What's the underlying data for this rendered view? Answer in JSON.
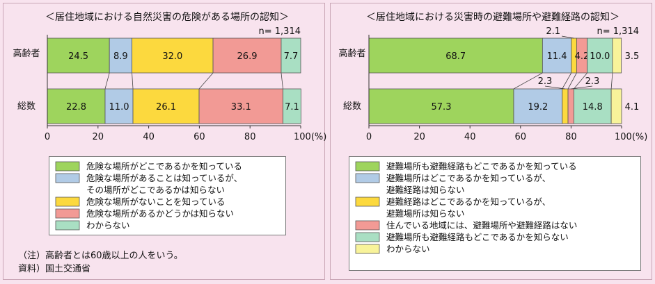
{
  "notes": {
    "note": "（注）高齢者とは60歳以上の人をいう。",
    "source": "資料）国土交通省"
  },
  "chart_data": [
    {
      "type": "bar",
      "orientation": "horizontal",
      "stacked": true,
      "title": "＜居住地域における自然災害の危険がある場所の認知＞",
      "sample_size": "n= 1,314",
      "categories": [
        "高齢者",
        "総数"
      ],
      "xlim": [
        0,
        100
      ],
      "x_ticks": [
        "0",
        "20",
        "40",
        "60",
        "80",
        "100(%)"
      ],
      "series": [
        {
          "name": "危険な場所がどこであるかを知っている",
          "color": "#9ed45d",
          "values": [
            24.5,
            22.8
          ]
        },
        {
          "name": "危険な場所があることは知っているが、その場所がどこであるかは知らない",
          "color": "#b1cbe6",
          "values": [
            8.9,
            11.0
          ]
        },
        {
          "name": "危険な場所がないことを知っている",
          "color": "#fcd93e",
          "values": [
            32.0,
            26.1
          ]
        },
        {
          "name": "危険な場所があるかどうかは知らない",
          "color": "#f29a95",
          "values": [
            26.9,
            33.1
          ]
        },
        {
          "name": "わからない",
          "color": "#a9dfc3",
          "values": [
            7.7,
            7.1
          ]
        }
      ],
      "value_labels": [
        [
          "24.5",
          "8.9",
          "32.0",
          "26.9",
          "7.7"
        ],
        [
          "22.8",
          "11.0",
          "26.1",
          "33.1",
          "7.1"
        ]
      ],
      "legend_lines": [
        [
          "危険な場所がどこであるかを知っている"
        ],
        [
          "危険な場所があることは知っているが、",
          "その場所がどこであるかは知らない"
        ],
        [
          "危険な場所がないことを知っている"
        ],
        [
          "危険な場所があるかどうかは知らない"
        ],
        [
          "わからない"
        ]
      ]
    },
    {
      "type": "bar",
      "orientation": "horizontal",
      "stacked": true,
      "title": "＜居住地域における災害時の避難場所や避難経路の認知＞",
      "sample_size": "n= 1,314",
      "categories": [
        "高齢者",
        "総数"
      ],
      "xlim": [
        0,
        100
      ],
      "x_ticks": [
        "0",
        "20",
        "40",
        "60",
        "80",
        "100(%)"
      ],
      "series": [
        {
          "name": "避難場所も避難経路もどこであるかを知っている",
          "color": "#9ed45d",
          "values": [
            68.7,
            57.3
          ]
        },
        {
          "name": "避難場所はどこであるかを知っているが、避難経路は知らない",
          "color": "#b1cbe6",
          "values": [
            11.4,
            19.2
          ]
        },
        {
          "name": "避難経路はどこであるかを知っているが、避難場所は知らない",
          "color": "#fcd93e",
          "values": [
            2.1,
            2.3
          ]
        },
        {
          "name": "住んでいる地域には、避難場所や避難経路はない",
          "color": "#f29a95",
          "values": [
            4.2,
            2.3
          ]
        },
        {
          "name": "避難場所も避難経路もどこであるかを知らない",
          "color": "#a9dfc3",
          "values": [
            10.0,
            14.8
          ]
        },
        {
          "name": "わからない",
          "color": "#f8f39a",
          "values": [
            3.5,
            4.1
          ]
        }
      ],
      "value_labels": [
        [
          "68.7",
          "11.4",
          "2.1",
          "4.2",
          "10.0",
          "3.5"
        ],
        [
          "57.3",
          "19.2",
          "2.3",
          "2.3",
          "14.8",
          "4.1"
        ]
      ],
      "legend_lines": [
        [
          "避難場所も避難経路もどこであるかを知っている"
        ],
        [
          "避難場所はどこであるかを知っているが、",
          "避難経路は知らない"
        ],
        [
          "避難経路はどこであるかを知っているが、",
          "避難場所は知らない"
        ],
        [
          "住んでいる地域には、避難場所や避難経路はない"
        ],
        [
          "避難場所も避難経路もどこであるかを知らない"
        ],
        [
          "わからない"
        ]
      ]
    }
  ]
}
